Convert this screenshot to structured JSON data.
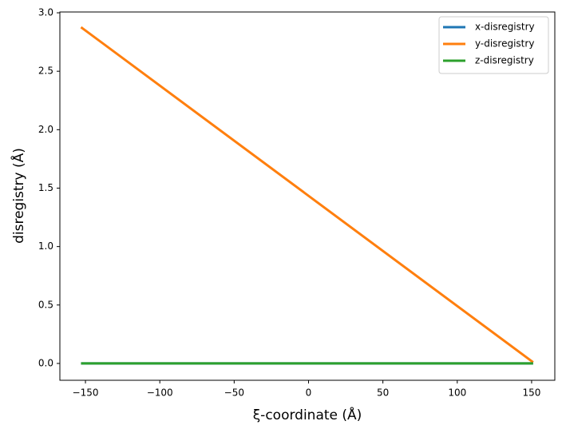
{
  "chart_data": {
    "type": "line",
    "x_label": "ξ-coordinate (Å)",
    "y_label": "disregistry (Å)",
    "x": [
      -153,
      151
    ],
    "series": [
      {
        "name": "x-disregistry",
        "color": "#1f77b4",
        "values": [
          0,
          0
        ]
      },
      {
        "name": "y-disregistry",
        "color": "#ff7f0e",
        "values": [
          2.877,
          0.01
        ]
      },
      {
        "name": "z-disregistry",
        "color": "#2ca02c",
        "values": [
          0,
          0
        ]
      }
    ],
    "xlim": [
      -167.2,
      165.6
    ],
    "ylim": [
      -0.144,
      3.007
    ],
    "xticks": [
      {
        "value": -150,
        "label": "−150"
      },
      {
        "value": -100,
        "label": "−100"
      },
      {
        "value": -50,
        "label": "−50"
      },
      0,
      50,
      100,
      150
    ],
    "yticks": [
      {
        "value": 0,
        "label": "0.0"
      },
      {
        "value": 0.5,
        "label": "0.5"
      },
      {
        "value": 1,
        "label": "1.0"
      },
      {
        "value": 1.5,
        "label": "1.5"
      },
      {
        "value": 2,
        "label": "2.0"
      },
      {
        "value": 2.5,
        "label": "2.5"
      },
      {
        "value": 3,
        "label": "3.0"
      }
    ],
    "legend": "upper right",
    "grid": false
  }
}
